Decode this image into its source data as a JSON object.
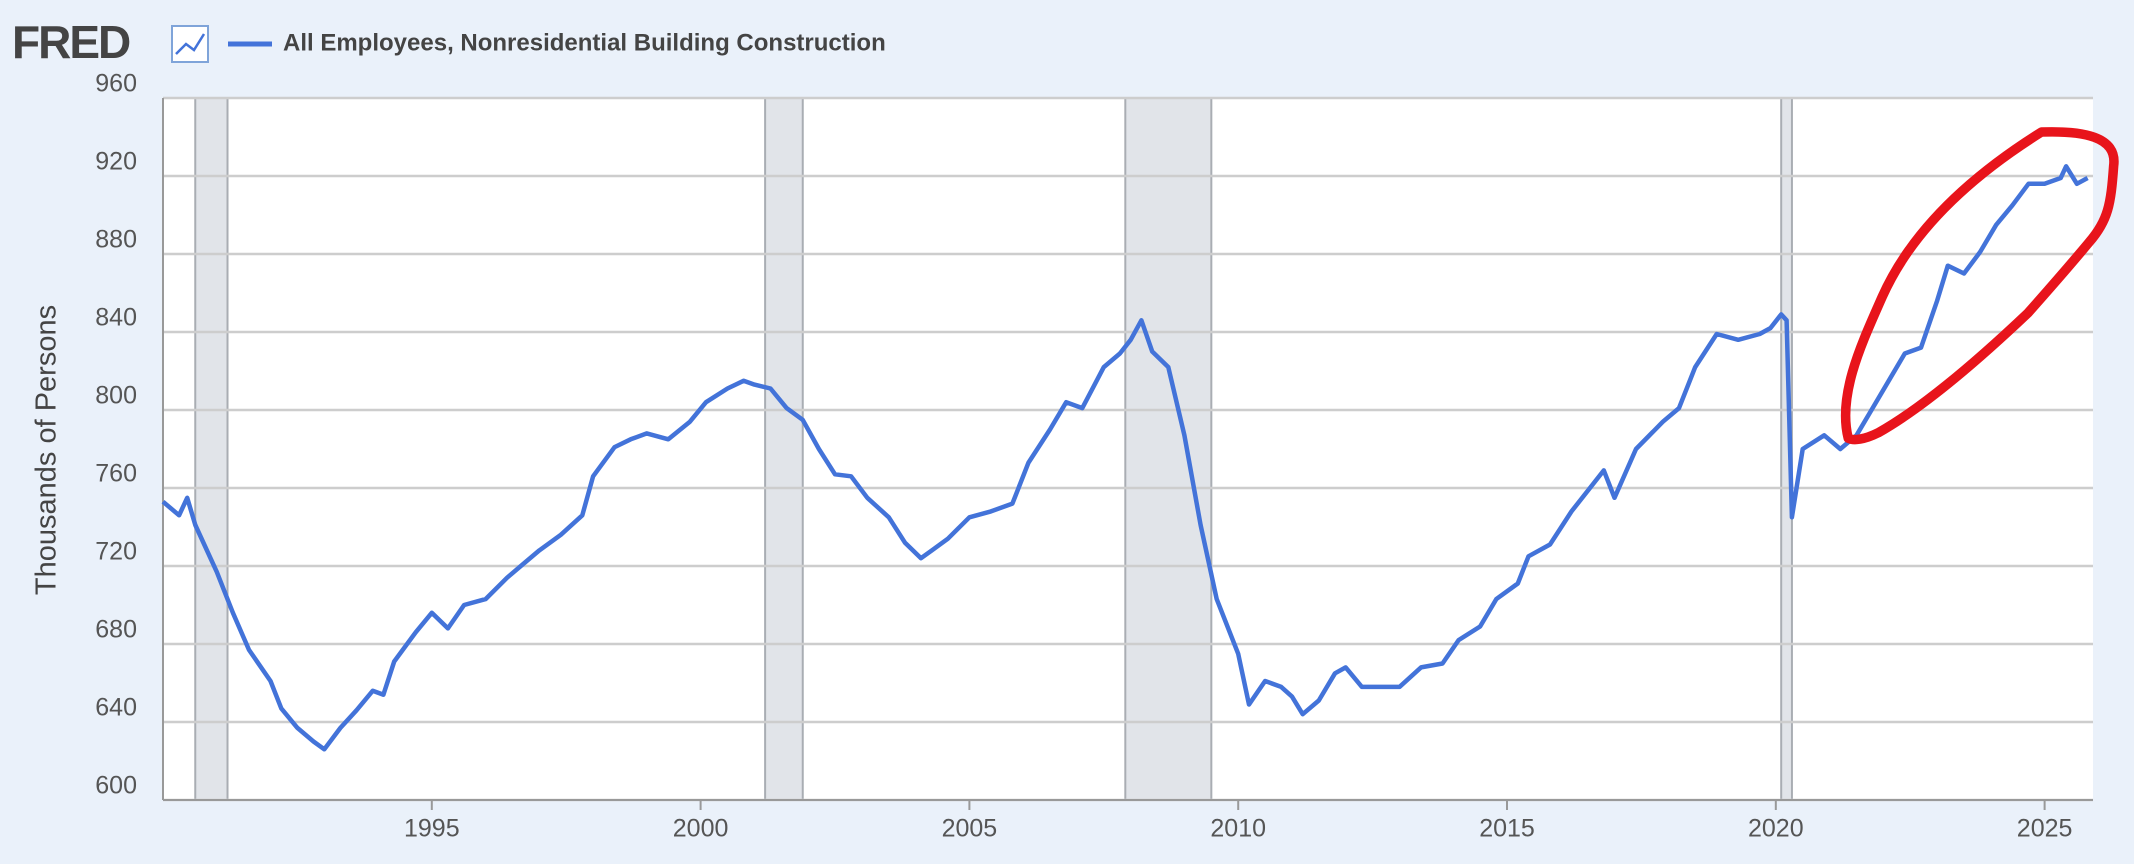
{
  "chart_data": {
    "type": "line",
    "logo": "FRED",
    "y_label": "Thousands of Persons",
    "xlim": [
      1990,
      2025.9
    ],
    "ylim": [
      600,
      960
    ],
    "xticks": [
      1995,
      2000,
      2005,
      2010,
      2015,
      2020,
      2025
    ],
    "yticks": [
      600,
      640,
      680,
      720,
      760,
      800,
      840,
      880,
      920,
      960
    ],
    "grid": true,
    "recessions": [
      [
        1990.6,
        1991.2
      ],
      [
        2001.2,
        2001.9
      ],
      [
        2007.9,
        2009.5
      ],
      [
        2020.1,
        2020.3
      ]
    ],
    "x": [
      1990.0,
      1990.3,
      1990.45,
      1990.6,
      1991.0,
      1991.3,
      1991.6,
      1992.0,
      1992.2,
      1992.5,
      1992.8,
      1993.0,
      1993.3,
      1993.6,
      1993.9,
      1994.1,
      1994.3,
      1994.7,
      1995.0,
      1995.3,
      1995.6,
      1996.0,
      1996.4,
      1996.7,
      1997.0,
      1997.4,
      1997.8,
      1998.0,
      1998.4,
      1998.7,
      1999.0,
      1999.4,
      1999.8,
      2000.1,
      2000.5,
      2000.8,
      2001.0,
      2001.3,
      2001.6,
      2001.9,
      2002.2,
      2002.5,
      2002.8,
      2003.1,
      2003.5,
      2003.8,
      2004.1,
      2004.3,
      2004.6,
      2005.0,
      2005.4,
      2005.8,
      2006.1,
      2006.5,
      2006.8,
      2007.1,
      2007.5,
      2007.8,
      2008.0,
      2008.2,
      2008.4,
      2008.7,
      2009.0,
      2009.3,
      2009.6,
      2010.0,
      2010.2,
      2010.5,
      2010.8,
      2011.0,
      2011.2,
      2011.5,
      2011.8,
      2012.0,
      2012.3,
      2012.7,
      2013.0,
      2013.4,
      2013.8,
      2014.1,
      2014.5,
      2014.8,
      2015.2,
      2015.4,
      2015.8,
      2016.2,
      2016.6,
      2016.8,
      2017.0,
      2017.4,
      2017.9,
      2018.2,
      2018.5,
      2018.9,
      2019.3,
      2019.7,
      2019.9,
      2020.1,
      2020.2,
      2020.3,
      2020.5,
      2020.9,
      2021.2,
      2021.5,
      2021.8,
      2022.1,
      2022.4,
      2022.7,
      2023.0,
      2023.2,
      2023.5,
      2023.8,
      2024.1,
      2024.4,
      2024.7,
      2025.0,
      2025.3,
      2025.4,
      2025.6,
      2025.8
    ],
    "series": [
      {
        "name": "All Employees, Nonresidential Building Construction",
        "color": "#4373d9",
        "values": [
          753,
          746,
          755,
          741,
          717,
          696,
          677,
          661,
          647,
          637,
          630,
          626,
          637,
          646,
          656,
          654,
          671,
          686,
          696,
          688,
          700,
          703,
          714,
          721,
          728,
          736,
          746,
          766,
          781,
          785,
          788,
          785,
          794,
          804,
          811,
          815,
          813,
          811,
          801,
          795,
          780,
          767,
          766,
          755,
          745,
          732,
          724,
          728,
          734,
          745,
          748,
          752,
          773,
          790,
          804,
          801,
          822,
          829,
          836,
          846,
          830,
          822,
          787,
          741,
          703,
          675,
          649,
          661,
          658,
          653,
          644,
          651,
          665,
          668,
          658,
          658,
          658,
          668,
          670,
          682,
          689,
          703,
          711,
          725,
          731,
          748,
          762,
          769,
          755,
          780,
          794,
          801,
          822,
          839,
          836,
          839,
          842,
          849,
          846,
          745,
          780,
          787,
          780,
          787,
          801,
          815,
          829,
          832,
          856,
          874,
          870,
          881,
          895,
          905,
          916,
          916,
          919,
          925,
          916,
          919
        ]
      }
    ]
  }
}
